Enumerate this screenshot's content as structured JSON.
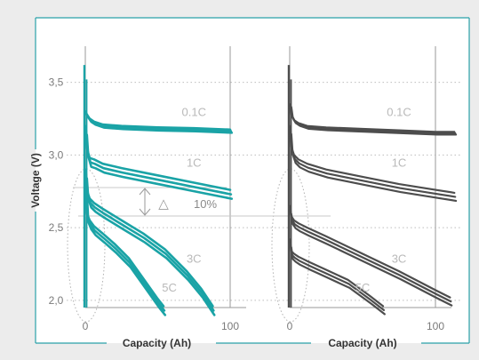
{
  "colors": {
    "background": "#ececec",
    "plot_background": "#ffffff",
    "frame": "#2aa1a8",
    "left_series": "#1aa3a6",
    "right_series": "#4d4d4d",
    "gridline": "#bdbdbd",
    "annotation": "#b9b9b9"
  },
  "chart_data": [
    {
      "type": "line",
      "xlabel": "Capacity (Ah)",
      "ylabel": "Voltage (V)",
      "xlim": [
        0,
        115
      ],
      "ylim": [
        1.95,
        3.7
      ],
      "x_ticks": [
        {
          "value": 0,
          "label": "0"
        },
        {
          "value": 100,
          "label": "100"
        }
      ],
      "y_ticks": [
        {
          "value": 2.0,
          "label": "2,0"
        },
        {
          "value": 2.5,
          "label": "2,5"
        },
        {
          "value": 3.0,
          "label": "3,0"
        },
        {
          "value": 3.5,
          "label": "3,5"
        }
      ],
      "grid": "horizontal dotted",
      "series": [
        {
          "name": "0.1C",
          "label_at": [
            75,
            3.27
          ],
          "x": [
            0,
            1,
            3,
            6,
            12,
            25,
            50,
            75,
            100
          ],
          "y": [
            3.3,
            3.28,
            3.25,
            3.23,
            3.21,
            3.2,
            3.19,
            3.185,
            3.175
          ]
        },
        {
          "name": "1C",
          "label_at": [
            75,
            2.92
          ],
          "x": [
            0,
            1,
            3,
            6,
            12,
            25,
            50,
            75,
            100
          ],
          "y": [
            3.2,
            3.05,
            2.98,
            2.97,
            2.94,
            2.91,
            2.86,
            2.81,
            2.76
          ]
        },
        {
          "name": "3C",
          "label_at": [
            75,
            2.26
          ],
          "x": [
            0,
            1,
            3,
            6,
            12,
            25,
            40,
            55,
            70,
            80,
            88
          ],
          "y": [
            2.9,
            2.76,
            2.7,
            2.67,
            2.63,
            2.55,
            2.46,
            2.35,
            2.2,
            2.08,
            1.96
          ]
        },
        {
          "name": "5C",
          "label_at": [
            58,
            2.06
          ],
          "x": [
            0,
            1,
            3,
            6,
            12,
            20,
            30,
            40,
            50,
            54
          ],
          "y": [
            2.8,
            2.6,
            2.55,
            2.51,
            2.46,
            2.39,
            2.29,
            2.15,
            2.01,
            1.96
          ]
        }
      ],
      "annotation": {
        "label": "△",
        "value": "10%"
      }
    },
    {
      "type": "line",
      "xlabel": "Capacity (Ah)",
      "xlim": [
        0,
        115
      ],
      "ylim": [
        1.95,
        3.7
      ],
      "x_ticks": [
        {
          "value": 0,
          "label": "0"
        },
        {
          "value": 100,
          "label": "100"
        }
      ],
      "grid": "horizontal dotted",
      "series": [
        {
          "name": "0.1C",
          "label_at": [
            75,
            3.27
          ],
          "x": [
            0,
            1,
            3,
            6,
            12,
            25,
            50,
            75,
            100,
            113
          ],
          "y": [
            3.35,
            3.28,
            3.24,
            3.22,
            3.2,
            3.19,
            3.18,
            3.17,
            3.16,
            3.16
          ]
        },
        {
          "name": "1C",
          "label_at": [
            75,
            2.92
          ],
          "x": [
            0,
            1,
            3,
            6,
            12,
            25,
            50,
            75,
            100,
            113
          ],
          "y": [
            3.2,
            3.06,
            3.0,
            2.97,
            2.94,
            2.9,
            2.85,
            2.8,
            2.76,
            2.74
          ]
        },
        {
          "name": "3C",
          "label_at": [
            75,
            2.26
          ],
          "x": [
            0,
            1,
            3,
            6,
            12,
            25,
            50,
            75,
            100,
            110
          ],
          "y": [
            2.65,
            2.58,
            2.55,
            2.53,
            2.5,
            2.44,
            2.32,
            2.2,
            2.07,
            2.02
          ]
        },
        {
          "name": "5C",
          "label_at": [
            50,
            2.06
          ],
          "x": [
            0,
            1,
            3,
            6,
            12,
            25,
            40,
            55,
            64
          ],
          "y": [
            2.42,
            2.34,
            2.32,
            2.3,
            2.27,
            2.21,
            2.14,
            2.03,
            1.96
          ]
        }
      ]
    }
  ]
}
